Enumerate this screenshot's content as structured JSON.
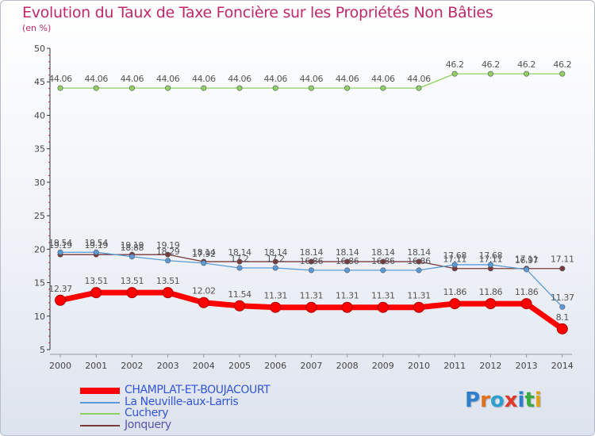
{
  "title": "Evolution du Taux de Taxe Foncière sur les Propriétés Non Bâties",
  "subtitle": "(en %)",
  "colors": {
    "title": "#c0286a",
    "champlat": "#ff0000",
    "neuville": "#5b9bd5",
    "cuchery": "#90d060",
    "jonquery": "#7a3a3a"
  },
  "chart_data": {
    "type": "line",
    "title": "Evolution du Taux de Taxe Foncière sur les Propriétés Non Bâties",
    "ylabel": "(en %)",
    "xlabel": "",
    "ylim": [
      5,
      50
    ],
    "yticks": [
      "5",
      "10",
      "15",
      "20",
      "25",
      "30",
      "35",
      "40",
      "45",
      "50"
    ],
    "categories": [
      "2000",
      "2001",
      "2002",
      "2003",
      "2004",
      "2005",
      "2006",
      "2007",
      "2008",
      "2009",
      "2010",
      "2011",
      "2012",
      "2013",
      "2014"
    ],
    "series": [
      {
        "name": "CHAMPLAT-ET-BOUJACOURT",
        "color": "#ff0000",
        "values": [
          12.37,
          13.51,
          13.51,
          13.51,
          12.02,
          11.54,
          11.31,
          11.31,
          11.31,
          11.31,
          11.31,
          11.86,
          11.86,
          11.86,
          8.1
        ],
        "labels": [
          "12.37",
          "13.51",
          "13.51",
          "13.51",
          "12.02",
          "11.54",
          "11.31",
          "11.31",
          "11.31",
          "11.31",
          "11.31",
          "11.86",
          "11.86",
          "11.86",
          "8.1"
        ]
      },
      {
        "name": "La Neuville-aux-Larris",
        "color": "#5b9bd5",
        "values": [
          19.54,
          19.54,
          18.88,
          18.29,
          17.92,
          17.2,
          17.2,
          16.86,
          16.86,
          16.86,
          16.86,
          17.68,
          17.68,
          16.97,
          11.37
        ],
        "labels": [
          "19.54",
          "19.54",
          "18.88",
          "18.29",
          "17.92",
          "17.2",
          "17.2",
          "16.86",
          "16.86",
          "16.86",
          "16.86",
          "17.68",
          "17.68",
          "16.97",
          "11.37"
        ]
      },
      {
        "name": "Cuchery",
        "color": "#90d060",
        "values": [
          44.06,
          44.06,
          44.06,
          44.06,
          44.06,
          44.06,
          44.06,
          44.06,
          44.06,
          44.06,
          44.06,
          46.2,
          46.2,
          46.2,
          46.2
        ],
        "labels": [
          "44.06",
          "44.06",
          "44.06",
          "44.06",
          "44.06",
          "44.06",
          "44.06",
          "44.06",
          "44.06",
          "44.06",
          "44.06",
          "46.2",
          "46.2",
          "46.2",
          "46.2"
        ]
      },
      {
        "name": "Jonquery",
        "color": "#7a3a3a",
        "values": [
          19.19,
          19.19,
          19.19,
          19.19,
          18.14,
          18.14,
          18.14,
          18.14,
          18.14,
          18.14,
          18.14,
          17.11,
          17.11,
          17.11,
          17.11
        ],
        "labels": [
          "19.19",
          "19.19",
          "19.19",
          "19.19",
          "18.14",
          "18.14",
          "18.14",
          "18.14",
          "18.14",
          "18.14",
          "18.14",
          "17.11",
          "17.11",
          "17.11",
          "17.11"
        ]
      }
    ],
    "legend_position": "bottom-left"
  },
  "legend": [
    {
      "label": "CHAMPLAT-ET-BOUJACOURT",
      "color": "#ff0000"
    },
    {
      "label": "La Neuville-aux-Larris",
      "color": "#5b9bd5"
    },
    {
      "label": "Cuchery",
      "color": "#90d060"
    },
    {
      "label": "Jonquery",
      "color": "#7a3a3a"
    }
  ],
  "logo": {
    "text": "Proxiti",
    "letters": [
      {
        "ch": "P",
        "color": "#2f7fd0"
      },
      {
        "ch": "r",
        "color": "#e0701a"
      },
      {
        "ch": "o",
        "color": "#2f9fd0"
      },
      {
        "ch": "x",
        "color": "#e03a2a"
      },
      {
        "ch": "i",
        "color": "#2f7fd0"
      },
      {
        "ch": "t",
        "color": "#3aaa3a"
      },
      {
        "ch": "i",
        "color": "#e0a01a"
      }
    ]
  }
}
